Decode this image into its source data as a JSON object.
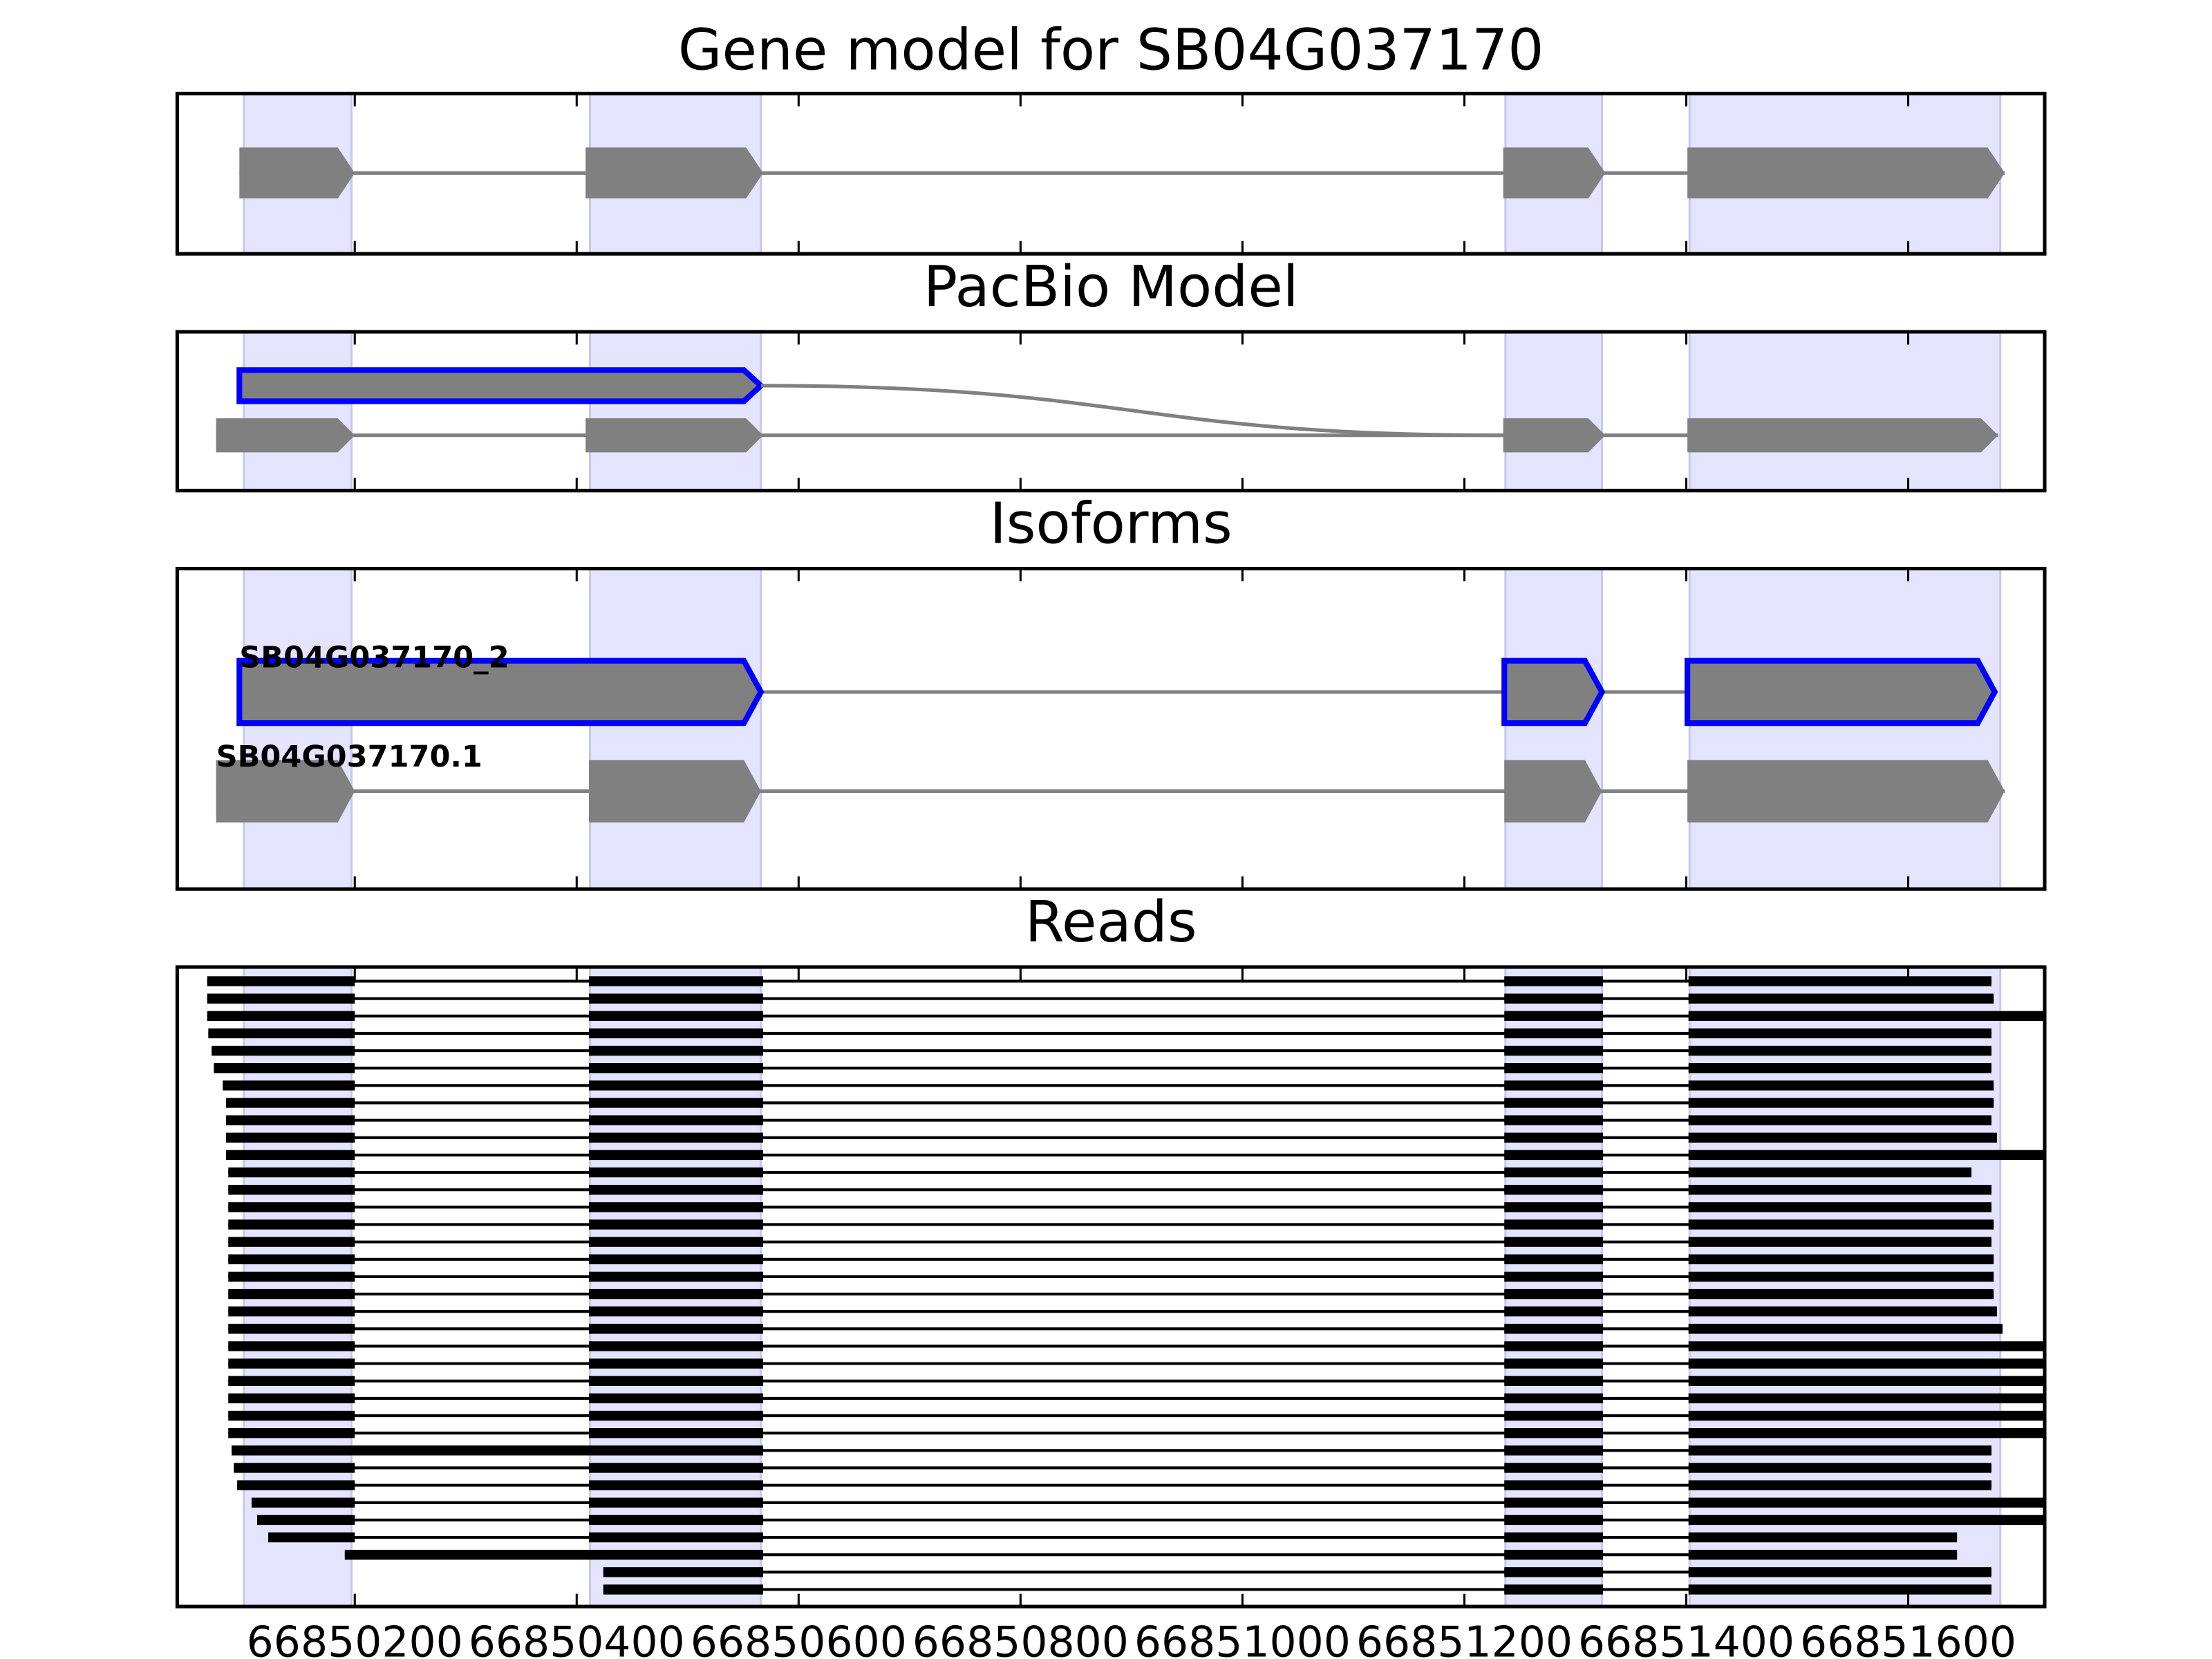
{
  "chart_data": {
    "type": "gene-tracks",
    "xlim": [
      66850040,
      66851723
    ],
    "xticks": [
      66850200,
      66850400,
      66850600,
      66850800,
      66851000,
      66851200,
      66851400,
      66851600
    ],
    "model_color": "#808080",
    "highlight_color": "#0000ff",
    "region_color": "#e4e4ff",
    "read_color": "#000000",
    "highlight_regions": [
      [
        66850100,
        66850197
      ],
      [
        66850412,
        66850566
      ],
      [
        66851237,
        66851324
      ],
      [
        66851403,
        66851683
      ]
    ],
    "panels": [
      {
        "title": "Gene model for SB04G037170",
        "models": [
          {
            "exons": [
              [
                66850096,
                66850200
              ],
              [
                66850408,
                66850568
              ],
              [
                66851235,
                66851327
              ],
              [
                66851401,
                66851687
              ]
            ],
            "highlight": false
          }
        ]
      },
      {
        "title": "PacBio Model",
        "models": [
          {
            "exons": [
              [
                66850096,
                66850566
              ]
            ],
            "highlight": true
          },
          {
            "exons": [
              [
                66850075,
                66850200
              ],
              [
                66850408,
                66850568
              ],
              [
                66851235,
                66851327
              ],
              [
                66851401,
                66851681
              ]
            ],
            "highlight": false
          }
        ]
      },
      {
        "title": "Isoforms",
        "models": [
          {
            "name": "SB04G037170_2",
            "exons": [
              [
                66850096,
                66850566
              ],
              [
                66851236,
                66851324
              ],
              [
                66851401,
                66851678
              ]
            ],
            "highlight": true
          },
          {
            "name": "SB04G037170.1",
            "exons": [
              [
                66850075,
                66850200
              ],
              [
                66850411,
                66850566
              ],
              [
                66851236,
                66851324
              ],
              [
                66851401,
                66851687
              ]
            ],
            "highlight": false
          }
        ]
      },
      {
        "title": "Reads",
        "reads": [
          [
            [
              66850067,
              66850200
            ],
            [
              66850411,
              66850568
            ],
            [
              66851236,
              66851325
            ],
            [
              66851402,
              66851675
            ]
          ],
          [
            [
              66850067,
              66850200
            ],
            [
              66850411,
              66850568
            ],
            [
              66851236,
              66851325
            ],
            [
              66851402,
              66851677
            ]
          ],
          [
            [
              66850067,
              66850200
            ],
            [
              66850411,
              66850568
            ],
            [
              66851236,
              66851325
            ],
            [
              66851402,
              66851760
            ]
          ],
          [
            [
              66850068,
              66850200
            ],
            [
              66850411,
              66850568
            ],
            [
              66851236,
              66851325
            ],
            [
              66851402,
              66851675
            ]
          ],
          [
            [
              66850071,
              66850200
            ],
            [
              66850411,
              66850568
            ],
            [
              66851236,
              66851325
            ],
            [
              66851402,
              66851675
            ]
          ],
          [
            [
              66850073,
              66850200
            ],
            [
              66850411,
              66850568
            ],
            [
              66851236,
              66851325
            ],
            [
              66851402,
              66851675
            ]
          ],
          [
            [
              66850081,
              66850200
            ],
            [
              66850411,
              66850568
            ],
            [
              66851236,
              66851325
            ],
            [
              66851402,
              66851677
            ]
          ],
          [
            [
              66850084,
              66850200
            ],
            [
              66850411,
              66850568
            ],
            [
              66851236,
              66851325
            ],
            [
              66851402,
              66851677
            ]
          ],
          [
            [
              66850084,
              66850200
            ],
            [
              66850411,
              66850568
            ],
            [
              66851236,
              66851325
            ],
            [
              66851402,
              66851675
            ]
          ],
          [
            [
              66850084,
              66850200
            ],
            [
              66850411,
              66850568
            ],
            [
              66851236,
              66851325
            ],
            [
              66851402,
              66851680
            ]
          ],
          [
            [
              66850084,
              66850200
            ],
            [
              66850411,
              66850568
            ],
            [
              66851236,
              66851325
            ],
            [
              66851402,
              66851760
            ]
          ],
          [
            [
              66850086,
              66850200
            ],
            [
              66850411,
              66850568
            ],
            [
              66851236,
              66851325
            ],
            [
              66851402,
              66851657
            ]
          ],
          [
            [
              66850086,
              66850200
            ],
            [
              66850411,
              66850568
            ],
            [
              66851236,
              66851325
            ],
            [
              66851402,
              66851675
            ]
          ],
          [
            [
              66850086,
              66850200
            ],
            [
              66850411,
              66850568
            ],
            [
              66851236,
              66851325
            ],
            [
              66851402,
              66851675
            ]
          ],
          [
            [
              66850086,
              66850200
            ],
            [
              66850411,
              66850568
            ],
            [
              66851236,
              66851325
            ],
            [
              66851402,
              66851677
            ]
          ],
          [
            [
              66850086,
              66850200
            ],
            [
              66850411,
              66850568
            ],
            [
              66851236,
              66851325
            ],
            [
              66851402,
              66851675
            ]
          ],
          [
            [
              66850086,
              66850200
            ],
            [
              66850411,
              66850568
            ],
            [
              66851236,
              66851325
            ],
            [
              66851402,
              66851677
            ]
          ],
          [
            [
              66850086,
              66850200
            ],
            [
              66850411,
              66850568
            ],
            [
              66851236,
              66851325
            ],
            [
              66851402,
              66851677
            ]
          ],
          [
            [
              66850086,
              66850200
            ],
            [
              66850411,
              66850568
            ],
            [
              66851236,
              66851325
            ],
            [
              66851402,
              66851677
            ]
          ],
          [
            [
              66850086,
              66850200
            ],
            [
              66850411,
              66850568
            ],
            [
              66851236,
              66851325
            ],
            [
              66851402,
              66851680
            ]
          ],
          [
            [
              66850086,
              66850200
            ],
            [
              66850411,
              66850568
            ],
            [
              66851236,
              66851325
            ],
            [
              66851402,
              66851685
            ]
          ],
          [
            [
              66850086,
              66850200
            ],
            [
              66850411,
              66850568
            ],
            [
              66851236,
              66851325
            ],
            [
              66851402,
              66851760
            ]
          ],
          [
            [
              66850086,
              66850200
            ],
            [
              66850411,
              66850568
            ],
            [
              66851236,
              66851325
            ],
            [
              66851402,
              66851760
            ]
          ],
          [
            [
              66850086,
              66850200
            ],
            [
              66850411,
              66850568
            ],
            [
              66851236,
              66851325
            ],
            [
              66851402,
              66851760
            ]
          ],
          [
            [
              66850086,
              66850200
            ],
            [
              66850411,
              66850568
            ],
            [
              66851236,
              66851325
            ],
            [
              66851402,
              66851760
            ]
          ],
          [
            [
              66850086,
              66850200
            ],
            [
              66850411,
              66850568
            ],
            [
              66851236,
              66851325
            ],
            [
              66851402,
              66851760
            ]
          ],
          [
            [
              66850086,
              66850200
            ],
            [
              66850411,
              66850568
            ],
            [
              66851236,
              66851325
            ],
            [
              66851402,
              66851760
            ]
          ],
          [
            [
              66850089,
              66850568
            ],
            [
              66851236,
              66851325
            ],
            [
              66851402,
              66851675
            ]
          ],
          [
            [
              66850091,
              66850200
            ],
            [
              66850411,
              66850568
            ],
            [
              66851236,
              66851325
            ],
            [
              66851402,
              66851675
            ]
          ],
          [
            [
              66850094,
              66850200
            ],
            [
              66850411,
              66850568
            ],
            [
              66851236,
              66851325
            ],
            [
              66851402,
              66851675
            ]
          ],
          [
            [
              66850107,
              66850200
            ],
            [
              66850411,
              66850568
            ],
            [
              66851236,
              66851325
            ],
            [
              66851402,
              66851760
            ]
          ],
          [
            [
              66850112,
              66850200
            ],
            [
              66850411,
              66850568
            ],
            [
              66851236,
              66851325
            ],
            [
              66851402,
              66851760
            ]
          ],
          [
            [
              66850122,
              66850200
            ],
            [
              66850411,
              66850568
            ],
            [
              66851236,
              66851325
            ],
            [
              66851402,
              66851644
            ]
          ],
          [
            [
              66850191,
              66850568
            ],
            [
              66851236,
              66851325
            ],
            [
              66851402,
              66851644
            ]
          ],
          [
            [
              66850424,
              66850568
            ],
            [
              66851236,
              66851325
            ],
            [
              66851402,
              66851675
            ]
          ],
          [
            [
              66850424,
              66850568
            ],
            [
              66851236,
              66851325
            ],
            [
              66851402,
              66851675
            ]
          ]
        ]
      }
    ]
  }
}
